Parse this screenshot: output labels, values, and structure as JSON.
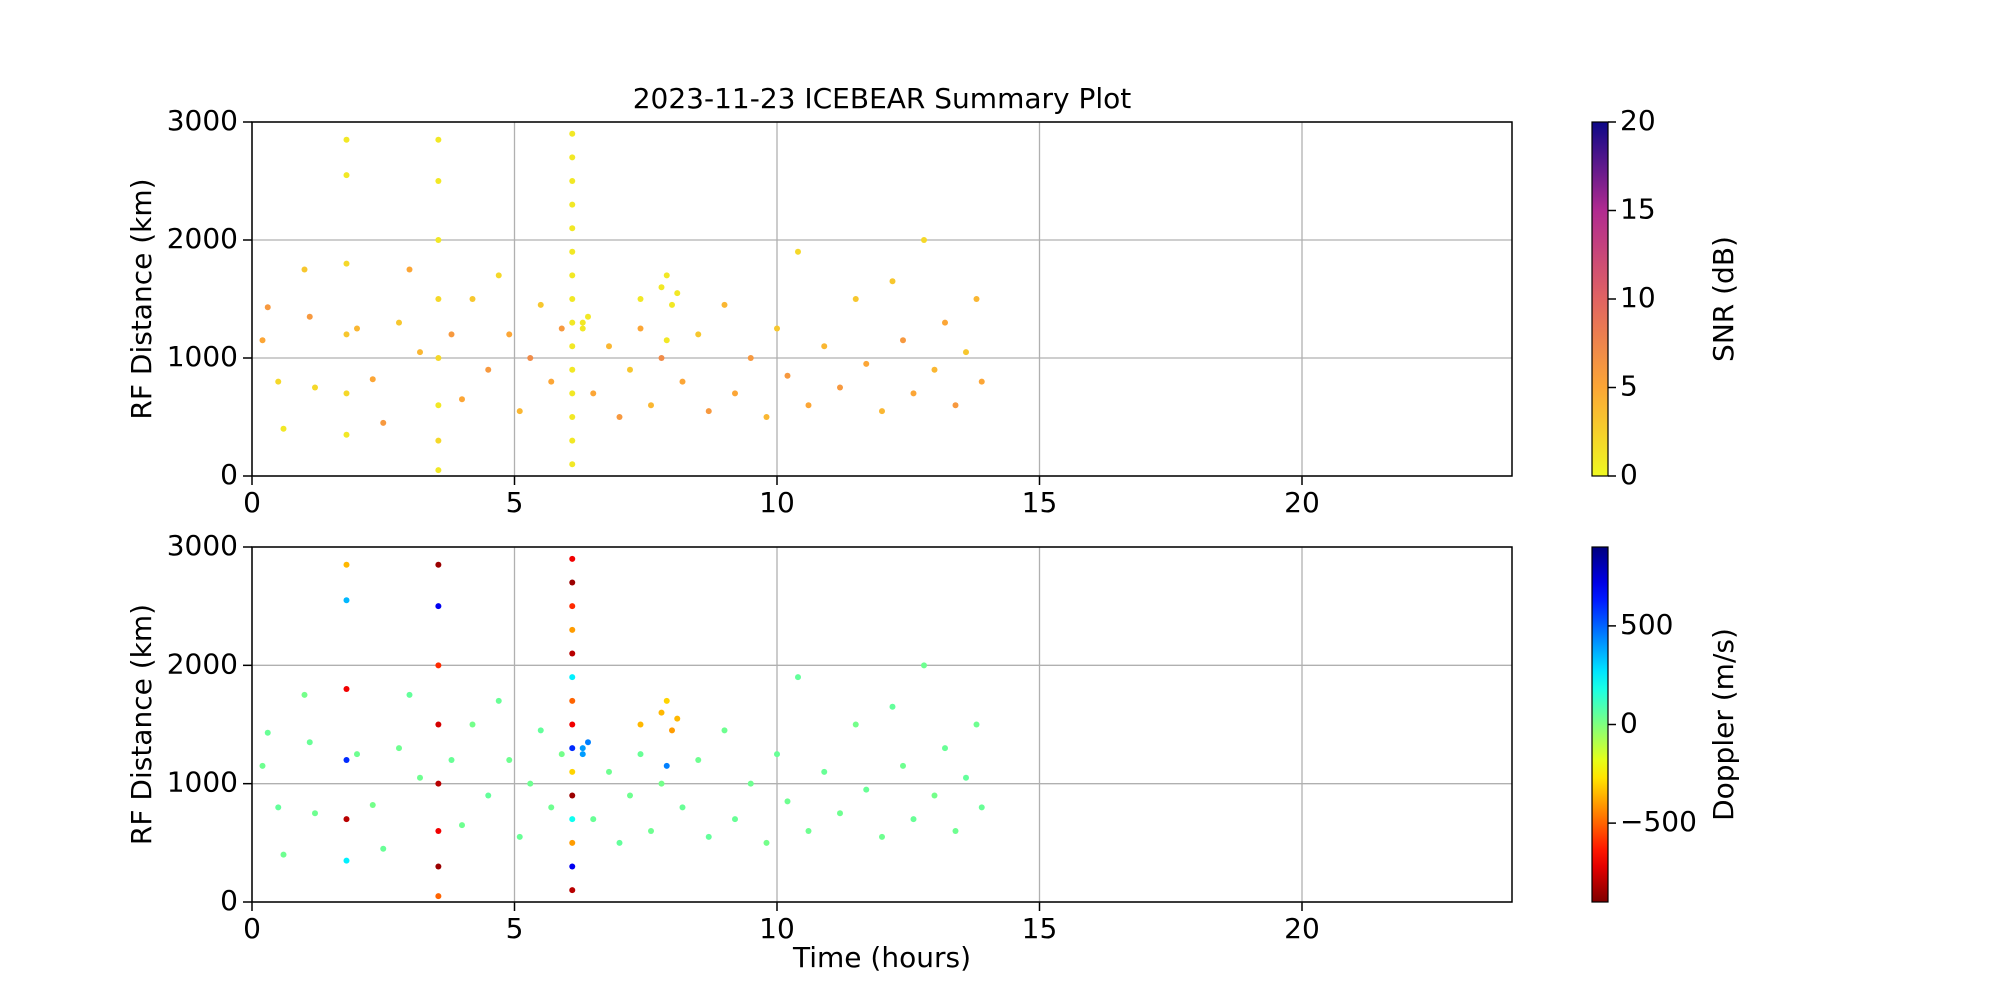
{
  "chart_data": [
    {
      "type": "scatter",
      "title": "2023-11-23 ICEBEAR Summary Plot",
      "ylabel": "RF Distance (km)",
      "x": [
        0.2,
        0.3,
        0.5,
        0.6,
        1.0,
        1.1,
        1.2,
        2.0,
        2.3,
        2.5,
        2.8,
        3.0,
        3.2,
        3.8,
        4.0,
        4.2,
        4.5,
        4.7,
        4.9,
        5.1,
        5.3,
        5.5,
        5.7,
        5.9,
        6.5,
        6.8,
        7.0,
        7.2,
        7.4,
        7.6,
        7.8,
        8.2,
        8.5,
        8.7,
        9.0,
        9.2,
        9.5,
        9.8,
        10.0,
        10.2,
        10.4,
        10.6,
        10.9,
        11.2,
        11.5,
        11.7,
        12.0,
        12.2,
        12.4,
        12.6,
        12.8,
        13.0,
        13.2,
        13.4,
        13.6,
        13.8,
        13.9,
        1.8,
        1.8,
        1.8,
        1.8,
        1.8,
        1.8,
        3.55,
        3.55,
        3.55,
        3.55,
        3.55,
        3.55,
        3.55,
        3.55,
        6.1,
        6.1,
        6.1,
        6.1,
        6.1,
        6.1,
        6.1,
        6.1,
        6.1,
        6.1,
        6.1,
        6.1,
        6.1,
        6.1,
        6.1,
        6.3,
        6.4,
        6.3,
        7.4,
        7.8,
        8.0,
        8.1,
        7.9,
        7.9
      ],
      "y": [
        1150,
        1430,
        800,
        400,
        1750,
        1350,
        750,
        1250,
        820,
        450,
        1300,
        1750,
        1050,
        1200,
        650,
        1500,
        900,
        1700,
        1200,
        550,
        1000,
        1450,
        800,
        1250,
        700,
        1100,
        500,
        900,
        1250,
        600,
        1000,
        800,
        1200,
        550,
        1450,
        700,
        1000,
        500,
        1250,
        850,
        1900,
        600,
        1100,
        750,
        1500,
        950,
        550,
        1650,
        1150,
        700,
        2000,
        900,
        1300,
        600,
        1050,
        1500,
        800,
        2850,
        2550,
        1800,
        1200,
        700,
        350,
        2850,
        2500,
        2000,
        1500,
        1000,
        600,
        300,
        50,
        100,
        300,
        500,
        700,
        900,
        1100,
        1300,
        1500,
        1700,
        1900,
        2100,
        2300,
        2500,
        2700,
        2900,
        1250,
        1350,
        1300,
        1500,
        1600,
        1450,
        1550,
        1700,
        1150
      ],
      "c": [
        5,
        6,
        2,
        1,
        3,
        6,
        2,
        4,
        5,
        6,
        3,
        5,
        4,
        6,
        5,
        3,
        6,
        2,
        5,
        4,
        7,
        3,
        5,
        6,
        5,
        4,
        6,
        3,
        5,
        4,
        7,
        5,
        3,
        6,
        4,
        5,
        6,
        4,
        3,
        6,
        2,
        5,
        4,
        6,
        3,
        5,
        4,
        3,
        6,
        5,
        2,
        4,
        5,
        6,
        3,
        4,
        5,
        1,
        1,
        2,
        3,
        2,
        1,
        1,
        1,
        1,
        2,
        2,
        1,
        2,
        1,
        1,
        1,
        1,
        1,
        1,
        1,
        1,
        1,
        1,
        1,
        1,
        1,
        1,
        1,
        1,
        1,
        1,
        1,
        1,
        1,
        1,
        1,
        1,
        1
      ],
      "xlim": [
        0,
        24
      ],
      "ylim": [
        0,
        3000
      ],
      "xticks": [
        0,
        5,
        10,
        15,
        20
      ],
      "yticks": [
        0,
        1000,
        2000,
        3000
      ],
      "grid": true,
      "colorbar": {
        "label": "SNR (dB)",
        "colormap": "plasma_r",
        "lim": [
          0,
          20
        ],
        "ticks": [
          0,
          5,
          10,
          15,
          20
        ]
      }
    },
    {
      "type": "scatter",
      "xlabel": "Time (hours)",
      "ylabel": "RF Distance (km)",
      "x": [
        0.2,
        0.3,
        0.5,
        0.6,
        1.0,
        1.1,
        1.2,
        2.0,
        2.3,
        2.5,
        2.8,
        3.0,
        3.2,
        3.8,
        4.0,
        4.2,
        4.5,
        4.7,
        4.9,
        5.1,
        5.3,
        5.5,
        5.7,
        5.9,
        6.5,
        6.8,
        7.0,
        7.2,
        7.4,
        7.6,
        7.8,
        8.2,
        8.5,
        8.7,
        9.0,
        9.2,
        9.5,
        9.8,
        10.0,
        10.2,
        10.4,
        10.6,
        10.9,
        11.2,
        11.5,
        11.7,
        12.0,
        12.2,
        12.4,
        12.6,
        12.8,
        13.0,
        13.2,
        13.4,
        13.6,
        13.8,
        13.9,
        1.8,
        1.8,
        1.8,
        1.8,
        1.8,
        1.8,
        3.55,
        3.55,
        3.55,
        3.55,
        3.55,
        3.55,
        3.55,
        3.55,
        6.1,
        6.1,
        6.1,
        6.1,
        6.1,
        6.1,
        6.1,
        6.1,
        6.1,
        6.1,
        6.1,
        6.1,
        6.1,
        6.1,
        6.1,
        6.3,
        6.4,
        6.3,
        7.4,
        7.8,
        8.0,
        8.1,
        7.9,
        7.9
      ],
      "y": [
        1150,
        1430,
        800,
        400,
        1750,
        1350,
        750,
        1250,
        820,
        450,
        1300,
        1750,
        1050,
        1200,
        650,
        1500,
        900,
        1700,
        1200,
        550,
        1000,
        1450,
        800,
        1250,
        700,
        1100,
        500,
        900,
        1250,
        600,
        1000,
        800,
        1200,
        550,
        1450,
        700,
        1000,
        500,
        1250,
        850,
        1900,
        600,
        1100,
        750,
        1500,
        950,
        550,
        1650,
        1150,
        700,
        2000,
        900,
        1300,
        600,
        1050,
        1500,
        800,
        2850,
        2550,
        1800,
        1200,
        700,
        350,
        2850,
        2500,
        2000,
        1500,
        1000,
        600,
        300,
        50,
        100,
        300,
        500,
        700,
        900,
        1100,
        1300,
        1500,
        1700,
        1900,
        2100,
        2300,
        2500,
        2700,
        2900,
        1250,
        1350,
        1300,
        1500,
        1600,
        1450,
        1550,
        1700,
        1150
      ],
      "c": [
        30,
        40,
        50,
        30,
        20,
        40,
        30,
        30,
        20,
        40,
        30,
        50,
        30,
        40,
        30,
        20,
        50,
        40,
        30,
        40,
        30,
        50,
        30,
        20,
        40,
        30,
        50,
        30,
        40,
        30,
        20,
        40,
        30,
        50,
        30,
        40,
        30,
        20,
        40,
        30,
        50,
        30,
        40,
        30,
        20,
        40,
        30,
        50,
        30,
        40,
        30,
        20,
        40,
        30,
        50,
        30,
        40,
        -350,
        350,
        -700,
        600,
        -800,
        250,
        -850,
        700,
        -600,
        -750,
        -800,
        -700,
        -850,
        -500,
        -800,
        700,
        -400,
        200,
        -850,
        -300,
        600,
        -700,
        -500,
        250,
        -800,
        -400,
        -600,
        -850,
        -700,
        400,
        450,
        400,
        -350,
        -350,
        -400,
        -350,
        -300,
        450
      ],
      "xlim": [
        0,
        24
      ],
      "ylim": [
        0,
        3000
      ],
      "xticks": [
        0,
        5,
        10,
        15,
        20
      ],
      "yticks": [
        0,
        1000,
        2000,
        3000
      ],
      "grid": true,
      "colorbar": {
        "label": "Doppler (m/s)",
        "colormap": "jet_r",
        "lim": [
          -900,
          900
        ],
        "ticks": [
          {
            "value": -500,
            "label": "−500"
          },
          0,
          500
        ]
      }
    }
  ]
}
